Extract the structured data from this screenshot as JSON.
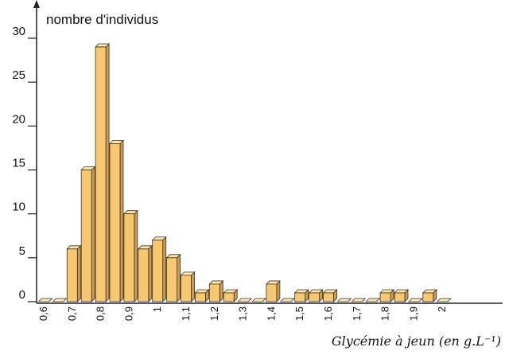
{
  "chart_data": {
    "type": "bar",
    "y_label": "nombre d'individus",
    "x_label": "Glycémie à jeun (en g.L⁻¹)",
    "categories": [
      "0,6",
      null,
      "0,7",
      null,
      "0,8",
      null,
      "0,9",
      null,
      "1",
      null,
      "1,1",
      null,
      "1,2",
      null,
      "1,3",
      null,
      "1,4",
      null,
      "1,5",
      null,
      "1,6",
      null,
      "1,7",
      null,
      "1,8",
      null,
      "1,9",
      null,
      "2"
    ],
    "values": [
      0,
      0,
      6,
      15,
      29,
      18,
      10,
      6,
      7,
      5,
      3,
      1,
      2,
      1,
      0,
      0,
      2,
      0,
      1,
      1,
      1,
      0,
      0,
      0,
      1,
      1,
      0,
      1,
      0
    ],
    "color": "#f6c872",
    "ylim": [
      0,
      30
    ],
    "yticks": [
      0,
      5,
      10,
      15,
      20,
      25,
      30
    ],
    "grid": false
  }
}
